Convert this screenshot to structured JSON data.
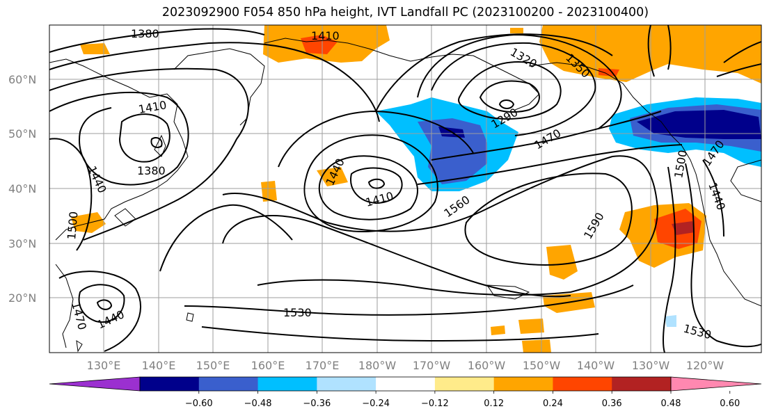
{
  "title": "2023092900 F054 850 hPa height, IVT Landfall PC (2023100200 - 2023100400)",
  "lat_labels": [
    "60°N",
    "50°N",
    "40°N",
    "30°N",
    "20°N"
  ],
  "lon_labels": [
    "130°E",
    "140°E",
    "150°E",
    "160°E",
    "170°E",
    "180°W",
    "170°W",
    "160°W",
    "150°W",
    "140°W",
    "130°W",
    "120°W"
  ],
  "contour_labels": [
    "1380",
    "1410",
    "1320",
    "1350",
    "1410",
    "1380",
    "1440",
    "1440",
    "1410",
    "1290",
    "1470",
    "1560",
    "1590",
    "1500",
    "1470",
    "1440",
    "1530",
    "1470",
    "1440",
    "1530",
    "1500"
  ],
  "colorbar": {
    "ticks": [
      "−0.60",
      "−0.48",
      "−0.36",
      "−0.24",
      "−0.12",
      "0.12",
      "0.24",
      "0.36",
      "0.48",
      "0.60"
    ],
    "colors": [
      "#9b30d0",
      "#00008b",
      "#3a5fcd",
      "#00bfff",
      "#b0e2ff",
      "#ffffff",
      "#ffeb8a",
      "#ffa500",
      "#ff4500",
      "#b22222",
      "#ff88b0"
    ]
  }
}
